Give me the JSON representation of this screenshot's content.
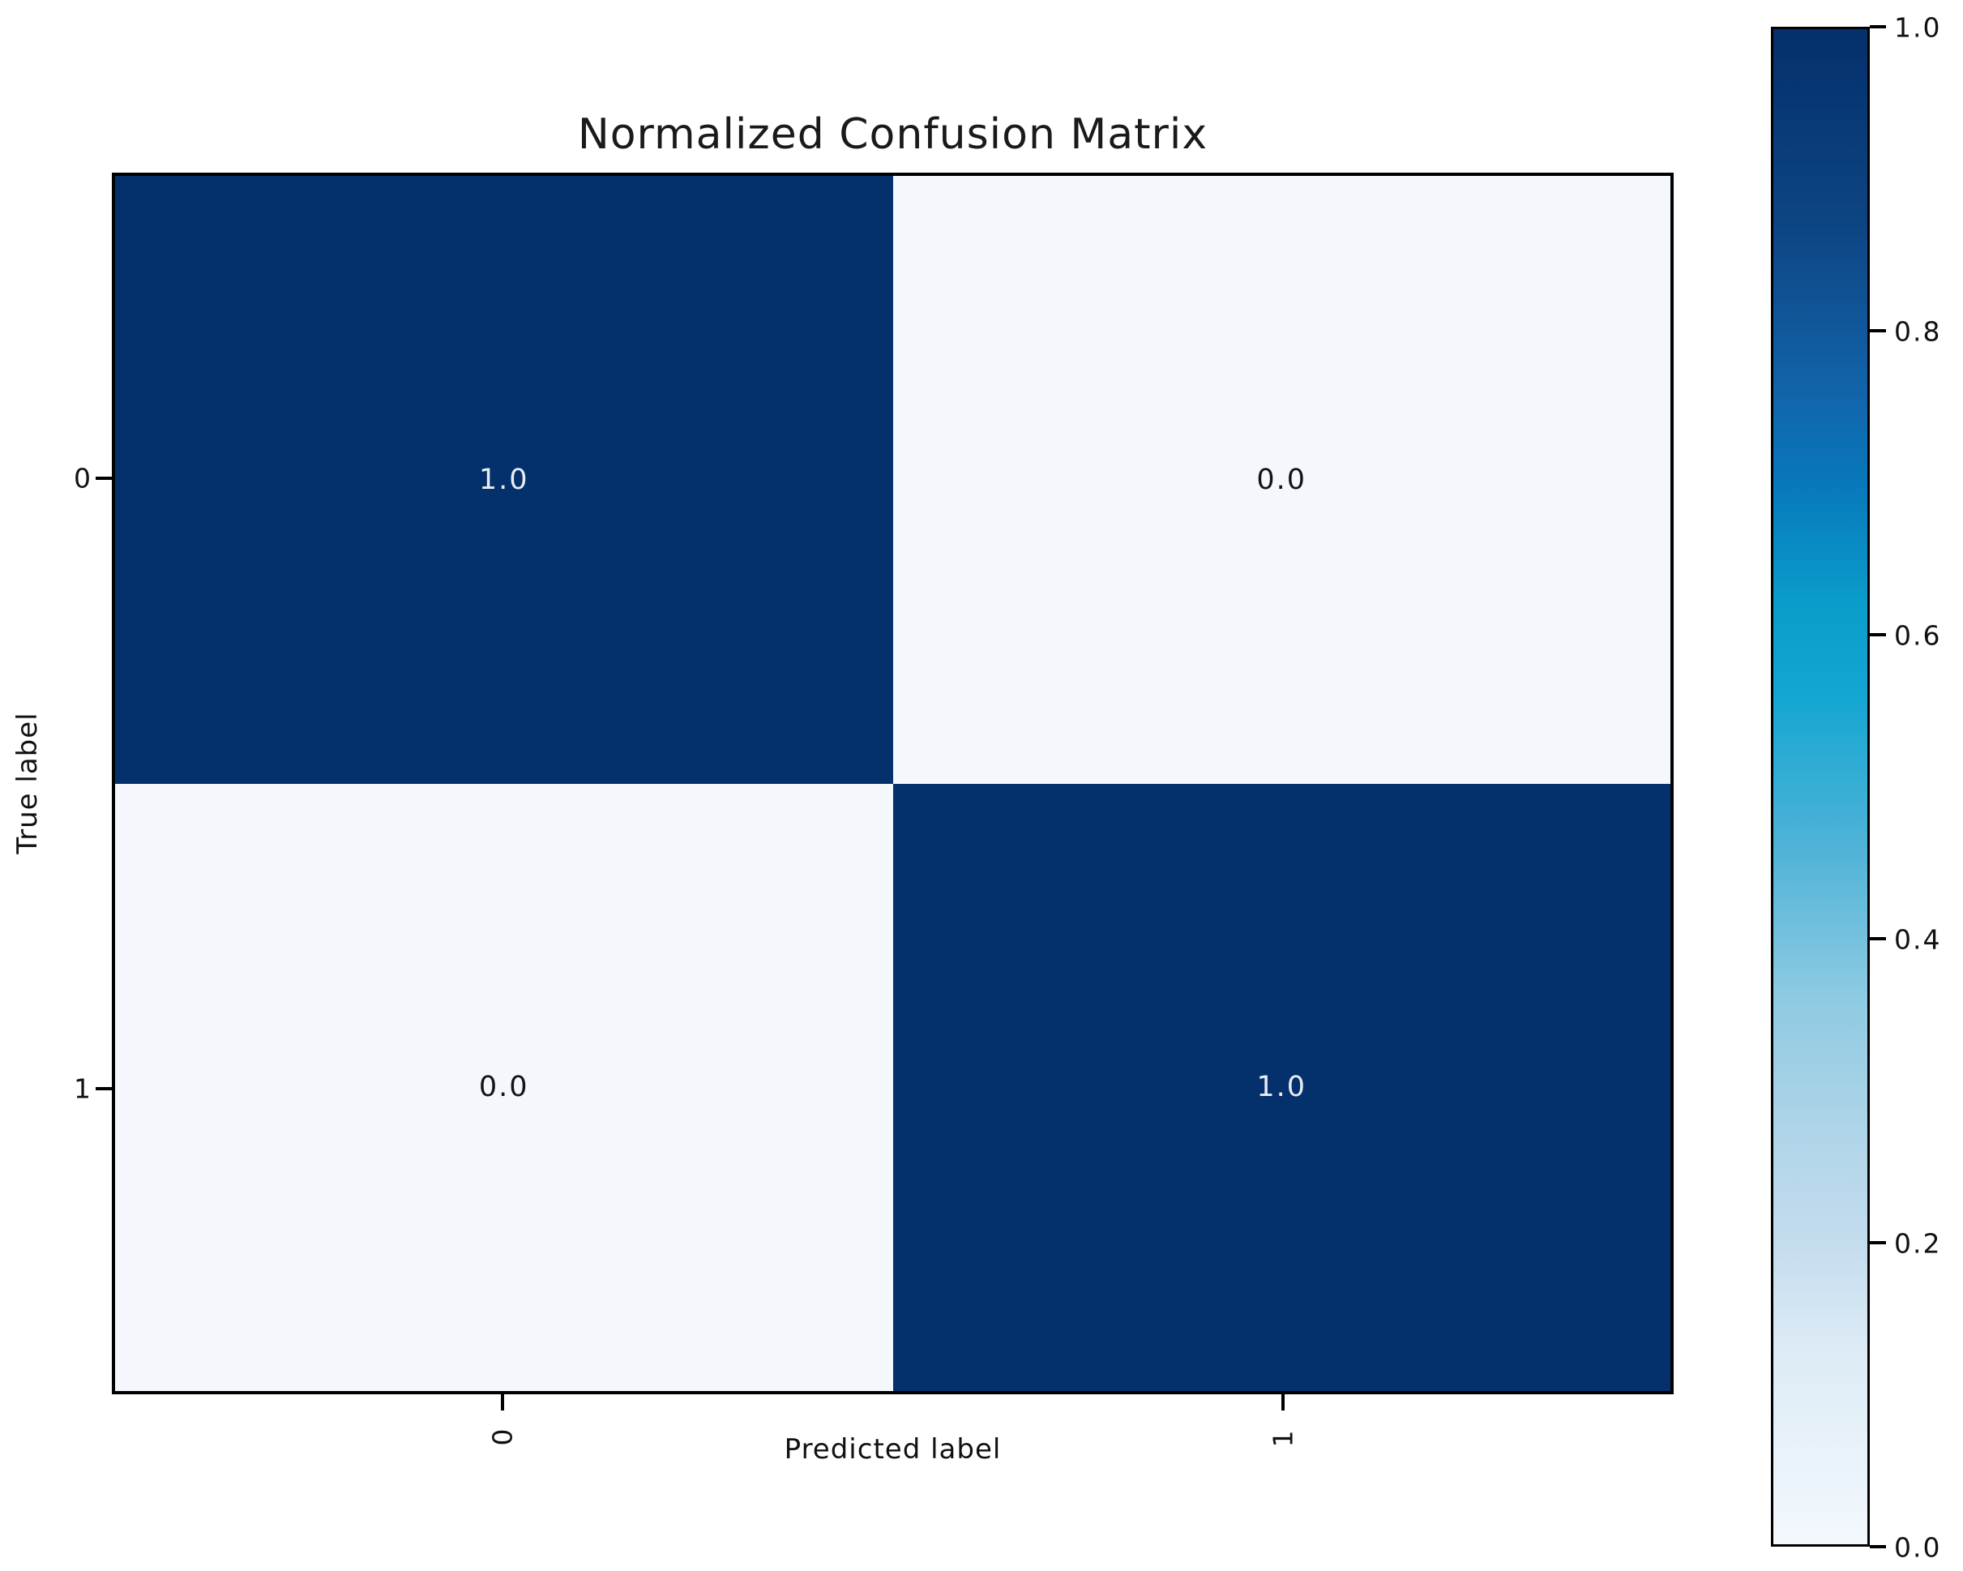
{
  "figure": {
    "title": "Normalized Confusion Matrix",
    "background_color": "#ffffff"
  },
  "chart_data": {
    "type": "heatmap",
    "title": "Normalized Confusion Matrix",
    "xlabel": "Predicted label",
    "ylabel": "True label",
    "x_tick_labels": [
      "0",
      "1"
    ],
    "y_tick_labels": [
      "0",
      "1"
    ],
    "matrix": [
      [
        1.0,
        0.0
      ],
      [
        0.0,
        1.0
      ]
    ],
    "cell_annotations": [
      [
        "1.0",
        "0.0"
      ],
      [
        "0.0",
        "1.0"
      ]
    ],
    "value_range": [
      0.0,
      1.0
    ],
    "colormap": "Blues",
    "grid": false,
    "colorbar": {
      "position": "right",
      "ticks": [
        "1.0",
        "0.8",
        "0.6",
        "0.4",
        "0.2",
        "0.0"
      ],
      "tick_values": [
        1.0,
        0.8,
        0.6,
        0.4,
        0.2,
        0.0
      ]
    },
    "colors": {
      "cell_high": "#04306b",
      "cell_low": "#f4f8fd",
      "annotation_on_high": "#e8edf4",
      "annotation_on_low": "#141414",
      "spine": "#000000",
      "gradient_stops_bottom_to_top": [
        "#f3f8fd",
        "#c3dcee",
        "#8ecbe2",
        "#4fb3d7",
        "#0a9dca",
        "#0878bc",
        "#1264aa",
        "#04306b"
      ]
    }
  }
}
